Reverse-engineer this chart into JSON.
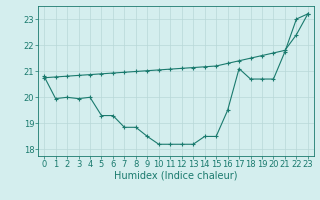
{
  "line1_x": [
    0,
    1,
    2,
    3,
    4,
    5,
    6,
    7,
    8,
    9,
    10,
    11,
    12,
    13,
    14,
    15,
    16,
    17,
    18,
    19,
    20,
    21,
    22,
    23
  ],
  "line1_y": [
    20.8,
    19.95,
    20.0,
    19.95,
    20.0,
    19.3,
    19.3,
    18.85,
    18.85,
    18.5,
    18.2,
    18.2,
    18.2,
    18.2,
    18.5,
    18.5,
    19.5,
    21.1,
    20.7,
    20.7,
    20.7,
    21.75,
    23.0,
    23.2
  ],
  "line2_x": [
    0,
    1,
    2,
    3,
    4,
    5,
    6,
    7,
    8,
    9,
    10,
    11,
    12,
    13,
    14,
    15,
    16,
    17,
    18,
    19,
    20,
    21,
    22,
    23
  ],
  "line2_y": [
    20.75,
    20.78,
    20.81,
    20.84,
    20.87,
    20.9,
    20.93,
    20.96,
    20.99,
    21.02,
    21.05,
    21.08,
    21.11,
    21.14,
    21.17,
    21.2,
    21.3,
    21.4,
    21.5,
    21.6,
    21.7,
    21.8,
    22.4,
    23.2
  ],
  "line_color": "#1a7a6e",
  "bg_color": "#d4eeee",
  "grid_color": "#b8d8d8",
  "xlabel": "Humidex (Indice chaleur)",
  "xlabel_fontsize": 7,
  "tick_fontsize": 6,
  "xlim": [
    -0.5,
    23.5
  ],
  "ylim": [
    17.75,
    23.5
  ],
  "yticks": [
    18,
    19,
    20,
    21,
    22,
    23
  ],
  "xticks": [
    0,
    1,
    2,
    3,
    4,
    5,
    6,
    7,
    8,
    9,
    10,
    11,
    12,
    13,
    14,
    15,
    16,
    17,
    18,
    19,
    20,
    21,
    22,
    23
  ]
}
